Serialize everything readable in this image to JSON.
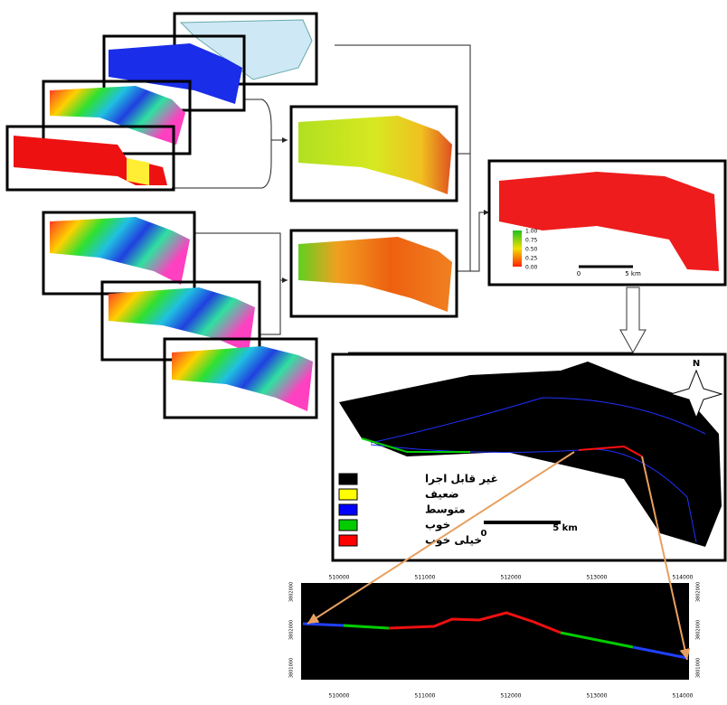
{
  "result_map": {
    "legend_ticks": [
      "1.00",
      "0.75",
      "0.50",
      "0.25",
      "0.00"
    ],
    "scale_labels": [
      "0",
      "5 km"
    ]
  },
  "suitability_map": {
    "north": "N",
    "legend": [
      {
        "label": "غیر قابل اجرا",
        "color": "#000000"
      },
      {
        "label": "ضعیف",
        "color": "#ffff00"
      },
      {
        "label": "متوسط",
        "color": "#0000ff"
      },
      {
        "label": "خوب",
        "color": "#00cc00"
      },
      {
        "label": "خیلی خوب",
        "color": "#ff0000"
      }
    ],
    "scale_labels": [
      "0",
      "5 km"
    ]
  },
  "profile": {
    "x_labels": [
      "510000",
      "511000",
      "512000",
      "513000",
      "514000"
    ],
    "y_labels": [
      "3802000",
      "3802000",
      "3801000"
    ]
  }
}
